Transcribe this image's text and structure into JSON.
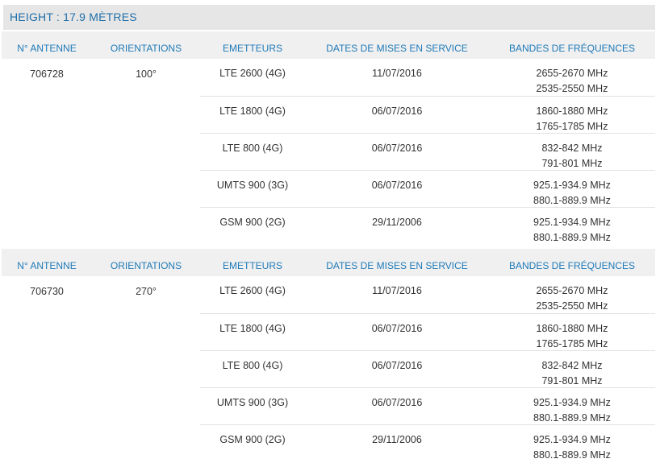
{
  "height_label": "HEIGHT : 17.9 MÈTRES",
  "headers": {
    "antenne": "N° ANTENNE",
    "orientations": "ORIENTATIONS",
    "emetteurs": "EMETTEURS",
    "dates": "DATES DE MISES EN SERVICE",
    "bandes": "BANDES DE FRÉQUENCES"
  },
  "antennas": [
    {
      "number": "706728",
      "orientation": "100°",
      "rows": [
        {
          "emetteur": "LTE 2600 (4G)",
          "date": "11/07/2016",
          "band1": "2655-2670 MHz",
          "band2": "2535-2550 MHz"
        },
        {
          "emetteur": "LTE 1800 (4G)",
          "date": "06/07/2016",
          "band1": "1860-1880 MHz",
          "band2": "1765-1785 MHz"
        },
        {
          "emetteur": "LTE 800 (4G)",
          "date": "06/07/2016",
          "band1": "832-842 MHz",
          "band2": "791-801 MHz"
        },
        {
          "emetteur": "UMTS 900 (3G)",
          "date": "06/07/2016",
          "band1": "925.1-934.9 MHz",
          "band2": "880.1-889.9 MHz"
        },
        {
          "emetteur": "GSM 900 (2G)",
          "date": "29/11/2006",
          "band1": "925.1-934.9 MHz",
          "band2": "880.1-889.9 MHz"
        }
      ]
    },
    {
      "number": "706730",
      "orientation": "270°",
      "rows": [
        {
          "emetteur": "LTE 2600 (4G)",
          "date": "11/07/2016",
          "band1": "2655-2670 MHz",
          "band2": "2535-2550 MHz"
        },
        {
          "emetteur": "LTE 1800 (4G)",
          "date": "06/07/2016",
          "band1": "1860-1880 MHz",
          "band2": "1765-1785 MHz"
        },
        {
          "emetteur": "LTE 800 (4G)",
          "date": "06/07/2016",
          "band1": "832-842 MHz",
          "band2": "791-801 MHz"
        },
        {
          "emetteur": "UMTS 900 (3G)",
          "date": "06/07/2016",
          "band1": "925.1-934.9 MHz",
          "band2": "880.1-889.9 MHz"
        },
        {
          "emetteur": "GSM 900 (2G)",
          "date": "29/11/2006",
          "band1": "925.1-934.9 MHz",
          "band2": "880.1-889.9 MHz"
        }
      ]
    }
  ]
}
